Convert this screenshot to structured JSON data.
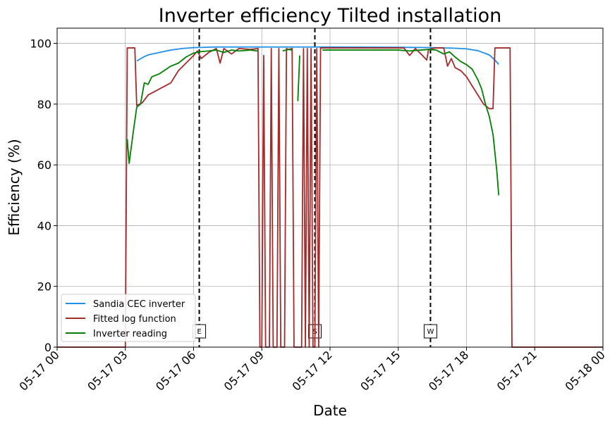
{
  "chart_data": {
    "type": "line",
    "title": "Inverter efficiency Tilted installation",
    "xlabel": "Date",
    "ylabel": "Efficiency (%)",
    "xlim": [
      "05-17 00:00",
      "05-18 00:00"
    ],
    "ylim": [
      0,
      105
    ],
    "grid": true,
    "legend_position": "lower-left",
    "x_ticks": [
      "05-17 00",
      "05-17 03",
      "05-17 06",
      "05-17 09",
      "05-17 12",
      "05-17 15",
      "05-17 18",
      "05-17 21",
      "05-18 00"
    ],
    "y_ticks": [
      0,
      20,
      40,
      60,
      80,
      100
    ],
    "series": [
      {
        "name": "Sandia CEC inverter",
        "color": "#1f8fe8",
        "points": [
          [
            "05-17 03:30",
            94.2
          ],
          [
            "05-17 03:45",
            95.3
          ],
          [
            "05-17 04:00",
            96.2
          ],
          [
            "05-17 04:30",
            97.0
          ],
          [
            "05-17 05:00",
            97.8
          ],
          [
            "05-17 05:30",
            98.3
          ],
          [
            "05-17 06:00",
            98.6
          ],
          [
            "05-17 07:00",
            98.8
          ],
          [
            "05-17 09:00",
            98.8
          ],
          [
            "05-17 12:00",
            98.8
          ],
          [
            "05-17 15:00",
            98.7
          ],
          [
            "05-17 16:30",
            98.6
          ],
          [
            "05-17 17:30",
            98.4
          ],
          [
            "05-17 18:00",
            98.2
          ],
          [
            "05-17 18:30",
            97.6
          ],
          [
            "05-17 19:00",
            96.2
          ],
          [
            "05-17 19:15",
            94.5
          ],
          [
            "05-17 19:25",
            93.1
          ]
        ]
      },
      {
        "name": "Fitted log function",
        "color": "#a52a2a",
        "points": [
          [
            "05-17 00:00",
            0
          ],
          [
            "05-17 03:00",
            0
          ],
          [
            "05-17 03:05",
            98.5
          ],
          [
            "05-17 03:25",
            98.5
          ],
          [
            "05-17 03:30",
            79.5
          ],
          [
            "05-17 03:45",
            80.5
          ],
          [
            "05-17 04:00",
            83.0
          ],
          [
            "05-17 04:30",
            85.0
          ],
          [
            "05-17 05:00",
            87.0
          ],
          [
            "05-17 05:20",
            91.0
          ],
          [
            "05-17 05:40",
            93.5
          ],
          [
            "05-17 06:00",
            96.0
          ],
          [
            "05-17 06:10",
            97.5
          ],
          [
            "05-17 06:20",
            95.0
          ],
          [
            "05-17 06:40",
            97.0
          ],
          [
            "05-17 07:00",
            98.3
          ],
          [
            "05-17 07:10",
            93.5
          ],
          [
            "05-17 07:20",
            98.3
          ],
          [
            "05-17 07:40",
            96.5
          ],
          [
            "05-17 08:00",
            98.3
          ],
          [
            "05-17 08:30",
            98.0
          ],
          [
            "05-17 08:50",
            98.3
          ],
          [
            "05-17 08:55",
            0
          ],
          [
            "05-17 09:00",
            0
          ],
          [
            "05-17 09:05",
            96.0
          ],
          [
            "05-17 09:10",
            0
          ],
          [
            "05-17 09:20",
            0
          ],
          [
            "05-17 09:25",
            98.3
          ],
          [
            "05-17 09:30",
            0
          ],
          [
            "05-17 09:40",
            0
          ],
          [
            "05-17 09:45",
            98.3
          ],
          [
            "05-17 09:50",
            0
          ],
          [
            "05-17 10:00",
            0
          ],
          [
            "05-17 10:05",
            98.3
          ],
          [
            "05-17 10:10",
            98.0
          ],
          [
            "05-17 10:20",
            98.3
          ],
          [
            "05-17 10:25",
            0
          ],
          [
            "05-17 10:45",
            0
          ],
          [
            "05-17 10:50",
            98.3
          ],
          [
            "05-17 10:55",
            0
          ],
          [
            "05-17 11:00",
            98.3
          ],
          [
            "05-17 11:05",
            0
          ],
          [
            "05-17 11:10",
            98.3
          ],
          [
            "05-17 11:15",
            0
          ],
          [
            "05-17 11:20",
            0
          ],
          [
            "05-17 11:25",
            98.3
          ],
          [
            "05-17 11:30",
            0
          ],
          [
            "05-17 11:35",
            98.5
          ],
          [
            "05-17 12:00",
            98.5
          ],
          [
            "05-17 15:00",
            98.5
          ],
          [
            "05-17 15:15",
            98.5
          ],
          [
            "05-17 15:30",
            96.0
          ],
          [
            "05-17 15:45",
            98.3
          ],
          [
            "05-17 16:00",
            96.5
          ],
          [
            "05-17 16:15",
            94.5
          ],
          [
            "05-17 16:20",
            98.0
          ],
          [
            "05-17 16:30",
            98.3
          ],
          [
            "05-17 16:40",
            98.5
          ],
          [
            "05-17 17:00",
            98.5
          ],
          [
            "05-17 17:10",
            92.5
          ],
          [
            "05-17 17:20",
            95.0
          ],
          [
            "05-17 17:30",
            92.0
          ],
          [
            "05-17 17:45",
            91.0
          ],
          [
            "05-17 18:00",
            89.0
          ],
          [
            "05-17 18:15",
            86.0
          ],
          [
            "05-17 18:30",
            83.0
          ],
          [
            "05-17 18:45",
            80.0
          ],
          [
            "05-17 19:00",
            78.5
          ],
          [
            "05-17 19:10",
            78.5
          ],
          [
            "05-17 19:15",
            98.5
          ],
          [
            "05-17 19:55",
            98.5
          ],
          [
            "05-17 20:00",
            0
          ],
          [
            "05-18 00:00",
            0
          ]
        ]
      },
      {
        "name": "Inverter reading",
        "color": "#008000",
        "segments": [
          [
            [
              "05-17 03:05",
              68.5
            ],
            [
              "05-17 03:10",
              60.5
            ],
            [
              "05-17 03:20",
              70.0
            ],
            [
              "05-17 03:30",
              79.0
            ],
            [
              "05-17 03:40",
              80.0
            ],
            [
              "05-17 03:50",
              87.0
            ],
            [
              "05-17 04:00",
              86.5
            ],
            [
              "05-17 04:10",
              89.0
            ],
            [
              "05-17 04:30",
              90.0
            ],
            [
              "05-17 05:00",
              92.5
            ],
            [
              "05-17 05:20",
              93.5
            ],
            [
              "05-17 05:40",
              95.5
            ],
            [
              "05-17 06:00",
              96.8
            ],
            [
              "05-17 06:20",
              97.3
            ],
            [
              "05-17 06:40",
              97.5
            ],
            [
              "05-17 07:00",
              97.8
            ],
            [
              "05-17 07:20",
              97.0
            ],
            [
              "05-17 07:40",
              97.8
            ],
            [
              "05-17 08:00",
              97.5
            ],
            [
              "05-17 08:30",
              97.8
            ],
            [
              "05-17 08:50",
              97.5
            ]
          ],
          [
            [
              "05-17 09:55",
              97.5
            ],
            [
              "05-17 10:10",
              98.0
            ],
            [
              "05-17 10:20",
              97.8
            ]
          ],
          [
            [
              "05-17 10:35",
              81.0
            ],
            [
              "05-17 10:40",
              96.0
            ]
          ],
          [
            [
              "05-17 11:40",
              97.8
            ],
            [
              "05-17 12:00",
              97.8
            ],
            [
              "05-17 15:00",
              97.8
            ],
            [
              "05-17 15:30",
              97.5
            ],
            [
              "05-17 16:00",
              97.8
            ],
            [
              "05-17 16:20",
              98.0
            ],
            [
              "05-17 16:40",
              97.8
            ],
            [
              "05-17 17:00",
              96.5
            ],
            [
              "05-17 17:15",
              97.2
            ],
            [
              "05-17 17:30",
              95.5
            ],
            [
              "05-17 17:45",
              94.0
            ],
            [
              "05-17 18:00",
              93.0
            ],
            [
              "05-17 18:15",
              91.5
            ],
            [
              "05-17 18:30",
              88.0
            ],
            [
              "05-17 18:40",
              85.0
            ],
            [
              "05-17 18:50",
              80.0
            ],
            [
              "05-17 19:00",
              76.0
            ],
            [
              "05-17 19:10",
              70.0
            ],
            [
              "05-17 19:15",
              64.0
            ],
            [
              "05-17 19:20",
              58.0
            ],
            [
              "05-17 19:25",
              50.0
            ]
          ]
        ]
      }
    ],
    "vlines": [
      {
        "x": "05-17 06:15",
        "label": "E"
      },
      {
        "x": "05-17 11:20",
        "label": "S"
      },
      {
        "x": "05-17 16:25",
        "label": "W"
      }
    ]
  }
}
